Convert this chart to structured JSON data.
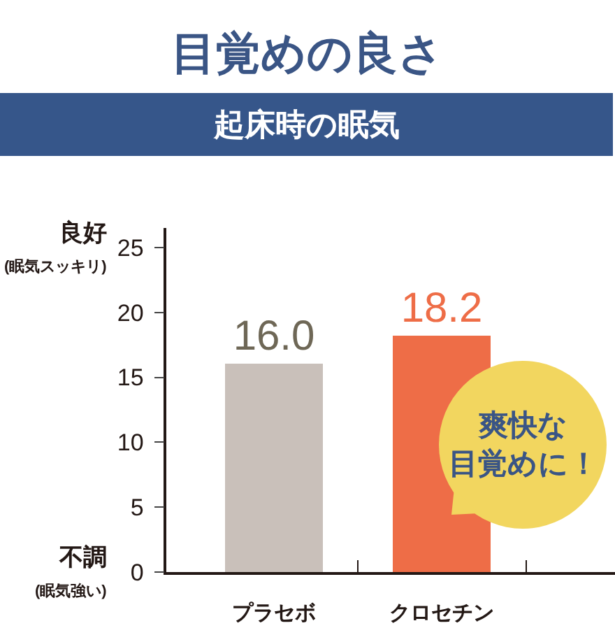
{
  "chart_data": {
    "type": "bar",
    "title": "目覚めの良さ",
    "subtitle": "起床時の眠気",
    "categories": [
      "プラセボ",
      "クロセチン"
    ],
    "values": [
      16.0,
      18.2
    ],
    "colors": [
      "#c9c0ba",
      "#ee6d47"
    ],
    "value_labels": [
      "16.0",
      "18.2"
    ],
    "ylim": [
      0,
      26.5
    ],
    "yticks": [
      0,
      5,
      10,
      15,
      20,
      25
    ],
    "annotations": [
      "良好\n(眠気スッキリ)",
      "不調\n(眠気強い)",
      "爽快な目覚めに！"
    ]
  }
}
